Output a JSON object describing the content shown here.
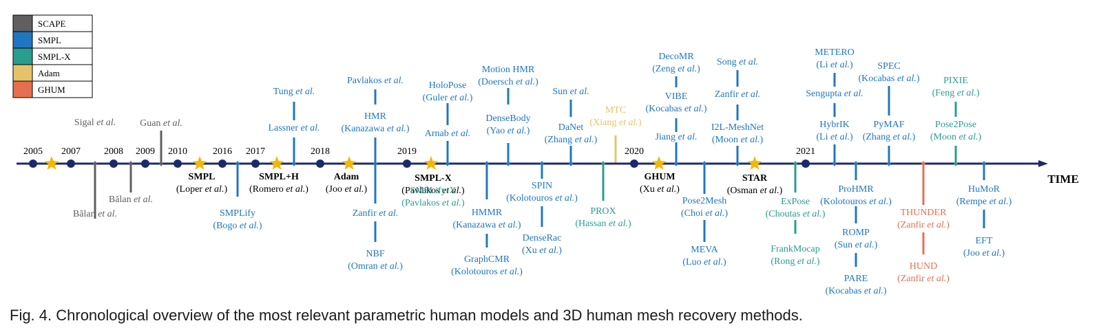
{
  "colors": {
    "SCAPE": "#5f5f5f",
    "SMPL": "#1f77c2",
    "SMPL-X": "#2a9d8f",
    "Adam": "#e6c36a",
    "GHUM": "#e76f51",
    "axis": "#1b2a6b",
    "year": "#000000",
    "star": "#f5b800"
  },
  "legend": [
    {
      "key": "SCAPE",
      "label": "SCAPE"
    },
    {
      "key": "SMPL",
      "label": "SMPL"
    },
    {
      "key": "SMPL-X",
      "label": "SMPL-X"
    },
    {
      "key": "Adam",
      "label": "Adam"
    },
    {
      "key": "GHUM",
      "label": "GHUM"
    }
  ],
  "axis_label": "TIME",
  "years": [
    "2005",
    "2007",
    "2008",
    "2009",
    "2010",
    "2016",
    "2017",
    "2018",
    "2019",
    "2020",
    "2021"
  ],
  "models": [
    {
      "name": "SMPL",
      "author": "Loper",
      "suffix": " et al.)"
    },
    {
      "name": "SMPL+H",
      "author": "Romero",
      "suffix": " et al.)"
    },
    {
      "name": "Adam",
      "author": "Joo",
      "suffix": " et al.)"
    },
    {
      "name": "SMPL-X",
      "author": "Pavlakos",
      "suffix": " et al.)"
    },
    {
      "name": "GHUM",
      "author": "Xu",
      "suffix": " et al.)"
    },
    {
      "name": "STAR",
      "author": "Osman",
      "suffix": " et al.)"
    }
  ],
  "methods": [
    {
      "id": "sigal",
      "family": "SCAPE",
      "name": "Sigal",
      "etal": true
    },
    {
      "id": "balan1",
      "family": "SCAPE",
      "name": "Bălan",
      "etal": true
    },
    {
      "id": "balan2",
      "family": "SCAPE",
      "name": "Bălan",
      "etal": true
    },
    {
      "id": "guan",
      "family": "SCAPE",
      "name": "Guan",
      "etal": true
    },
    {
      "id": "smplify",
      "family": "SMPL",
      "name": "SMPLify",
      "author": "Bogo"
    },
    {
      "id": "lassner",
      "family": "SMPL",
      "name": "Lassner",
      "etal": true
    },
    {
      "id": "tung",
      "family": "SMPL",
      "name": "Tung",
      "etal": true
    },
    {
      "id": "hmr",
      "family": "SMPL",
      "name": "HMR",
      "author": "Kanazawa"
    },
    {
      "id": "pavlakos",
      "family": "SMPL",
      "name": "Pavlakos",
      "etal": true
    },
    {
      "id": "zanfir1",
      "family": "SMPL",
      "name": "Zanfir",
      "etal": true
    },
    {
      "id": "nbf",
      "family": "SMPL",
      "name": "NBF",
      "author": "Omran"
    },
    {
      "id": "smplifyx",
      "family": "SMPL-X",
      "name": "SMPLify-X",
      "author": "Pavlakos"
    },
    {
      "id": "arnab",
      "family": "SMPL",
      "name": "Arnab",
      "etal": true
    },
    {
      "id": "holopose",
      "family": "SMPL",
      "name": "HoloPose",
      "author": "Guler"
    },
    {
      "id": "hmmr",
      "family": "SMPL",
      "name": "HMMR",
      "author": "Kanazawa"
    },
    {
      "id": "graphcmr",
      "family": "SMPL",
      "name": "GraphCMR",
      "author": "Kolotouros"
    },
    {
      "id": "densebody",
      "family": "SMPL",
      "name": "DenseBody",
      "author": "Yao"
    },
    {
      "id": "motionhmr",
      "family": "SMPL",
      "name": "Motion HMR",
      "author": "Doersch"
    },
    {
      "id": "spin",
      "family": "SMPL",
      "name": "SPIN",
      "author": "Kolotouros"
    },
    {
      "id": "denserac",
      "family": "SMPL",
      "name": "DenseRac",
      "author": "Xu"
    },
    {
      "id": "danet",
      "family": "SMPL",
      "name": "DaNet",
      "author": "Zhang"
    },
    {
      "id": "sun1",
      "family": "SMPL",
      "name": "Sun",
      "etal": true
    },
    {
      "id": "prox",
      "family": "SMPL-X",
      "name": "PROX",
      "author": "Hassan"
    },
    {
      "id": "mtc",
      "family": "Adam",
      "name": "MTC",
      "author": "Xiang"
    },
    {
      "id": "jiang",
      "family": "SMPL",
      "name": "Jiang",
      "etal": true
    },
    {
      "id": "vibe",
      "family": "SMPL",
      "name": "VIBE",
      "author": "Kocabas"
    },
    {
      "id": "decomr",
      "family": "SMPL",
      "name": "DecoMR",
      "author": "Zeng"
    },
    {
      "id": "pose2mesh",
      "family": "SMPL",
      "name": "Pose2Mesh",
      "author": "Choi"
    },
    {
      "id": "meva",
      "family": "SMPL",
      "name": "MEVA",
      "author": "Luo"
    },
    {
      "id": "i2l",
      "family": "SMPL",
      "name": "I2L-MeshNet",
      "author": "Moon"
    },
    {
      "id": "zanfir2",
      "family": "SMPL",
      "name": "Zanfir",
      "etal": true
    },
    {
      "id": "song",
      "family": "SMPL",
      "name": "Song",
      "etal": true
    },
    {
      "id": "expose",
      "family": "SMPL-X",
      "name": "ExPose",
      "author": "Choutas"
    },
    {
      "id": "frankmocap",
      "family": "SMPL-X",
      "name": "FrankMocap",
      "author": "Rong"
    },
    {
      "id": "hybrik",
      "family": "SMPL",
      "name": "HybrIK",
      "author": "Li"
    },
    {
      "id": "sengupta",
      "family": "SMPL",
      "name": "Sengupta",
      "etal": true
    },
    {
      "id": "metero",
      "family": "SMPL",
      "name": "METERO",
      "author": "Li"
    },
    {
      "id": "prohmr",
      "family": "SMPL",
      "name": "ProHMR",
      "author": "Kolotouros"
    },
    {
      "id": "romp",
      "family": "SMPL",
      "name": "ROMP",
      "author": "Sun"
    },
    {
      "id": "pare",
      "family": "SMPL",
      "name": "PARE",
      "author": "Kocabas"
    },
    {
      "id": "pymaf",
      "family": "SMPL",
      "name": "PyMAF",
      "author": "Zhang"
    },
    {
      "id": "spec",
      "family": "SMPL",
      "name": "SPEC",
      "author": "Kocabas"
    },
    {
      "id": "thunder",
      "family": "GHUM",
      "name": "THUNDER",
      "author": "Zanfir"
    },
    {
      "id": "hund",
      "family": "GHUM",
      "name": "HUND",
      "author": "Zanfir"
    },
    {
      "id": "pose2pose",
      "family": "SMPL-X",
      "name": "Pose2Pose",
      "author": "Moon"
    },
    {
      "id": "pixie",
      "family": "SMPL-X",
      "name": "PIXIE",
      "author": "Feng"
    },
    {
      "id": "humor",
      "family": "SMPL",
      "name": "HuMoR",
      "author": "Rempe"
    },
    {
      "id": "eft",
      "family": "SMPL",
      "name": "EFT",
      "author": "Joo"
    }
  ],
  "caption": "Fig. 4. Chronological overview of the most relevant parametric human models and 3D human mesh recovery methods."
}
